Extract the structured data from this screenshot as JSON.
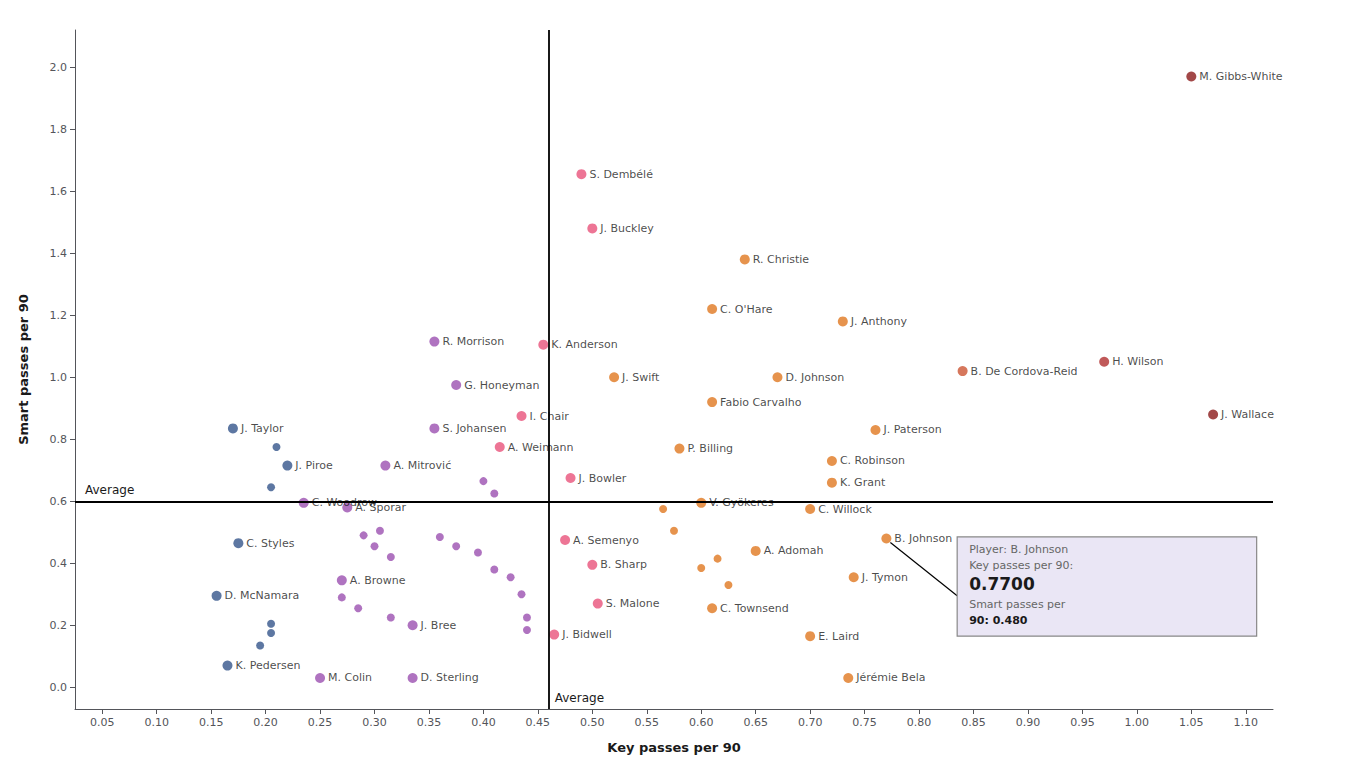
{
  "chart_data": {
    "type": "scatter",
    "xlabel": "Key passes per 90",
    "ylabel": "Smart passes per 90",
    "xlim": [
      0.025,
      1.125
    ],
    "ylim": [
      -0.07,
      2.12
    ],
    "xticks": [
      0.05,
      {
        "value": 0.1,
        "label": "0.10"
      },
      0.15,
      {
        "value": 0.2,
        "label": "0.20"
      },
      0.25,
      {
        "value": 0.3,
        "label": "0.30"
      },
      0.35,
      {
        "value": 0.4,
        "label": "0.40"
      },
      0.45,
      {
        "value": 0.5,
        "label": "0.50"
      },
      0.55,
      {
        "value": 0.6,
        "label": "0.60"
      },
      0.65,
      {
        "value": 0.7,
        "label": "0.70"
      },
      0.75,
      {
        "value": 0.8,
        "label": "0.80"
      },
      0.85,
      {
        "value": 0.9,
        "label": "0.90"
      },
      0.95,
      {
        "value": 1.0,
        "label": "1.00"
      },
      1.05,
      {
        "value": 1.1,
        "label": "1.10"
      }
    ],
    "yticks": [
      {
        "value": 0,
        "label": "0.0"
      },
      0.2,
      0.4,
      0.6,
      0.8,
      {
        "value": 1,
        "label": "1.0"
      },
      1.2,
      1.4,
      1.6,
      1.8,
      {
        "value": 2,
        "label": "2.0"
      }
    ],
    "grid": false,
    "avg_x": 0.46,
    "avg_y": 0.6,
    "avg_label": "Average",
    "annotation": {
      "x": 0.77,
      "y": 0.48,
      "lines": [
        "Player: B. Johnson",
        "Key passes per 90:",
        "0.7700",
        "Smart passes per",
        "90: 0.480"
      ]
    },
    "points": [
      {
        "label": "M. Gibbs-White",
        "x": 1.05,
        "y": 1.97,
        "color": "#8B1A1A"
      },
      {
        "label": "J. Wallace",
        "x": 1.07,
        "y": 0.88,
        "color": "#8B1A1A"
      },
      {
        "label": "H. Wilson",
        "x": 0.97,
        "y": 1.05,
        "color": "#b03030"
      },
      {
        "label": "B. De Cordova-Reid",
        "x": 0.84,
        "y": 1.02,
        "color": "#cc5533"
      },
      {
        "label": "J. Anthony",
        "x": 0.73,
        "y": 1.18,
        "color": "#e07820"
      },
      {
        "label": "R. Christie",
        "x": 0.64,
        "y": 1.38,
        "color": "#e07820"
      },
      {
        "label": "C. O'Hare",
        "x": 0.61,
        "y": 1.22,
        "color": "#e07820"
      },
      {
        "label": "D. Johnson",
        "x": 0.67,
        "y": 1.0,
        "color": "#e07820"
      },
      {
        "label": "Fabio Carvalho",
        "x": 0.61,
        "y": 0.92,
        "color": "#e07820"
      },
      {
        "label": "J. Swift",
        "x": 0.52,
        "y": 1.0,
        "color": "#e07820"
      },
      {
        "label": "J. Paterson",
        "x": 0.76,
        "y": 0.83,
        "color": "#e07820"
      },
      {
        "label": "C. Robinson",
        "x": 0.72,
        "y": 0.73,
        "color": "#e07820"
      },
      {
        "label": "K. Grant",
        "x": 0.72,
        "y": 0.66,
        "color": "#e07820"
      },
      {
        "label": "P. Billing",
        "x": 0.58,
        "y": 0.77,
        "color": "#e07820"
      },
      {
        "label": "V. Gyökeres",
        "x": 0.6,
        "y": 0.595,
        "color": "#e07820"
      },
      {
        "label": "C. Willock",
        "x": 0.7,
        "y": 0.575,
        "color": "#e07820"
      },
      {
        "label": "B. Johnson",
        "x": 0.77,
        "y": 0.48,
        "color": "#e07820"
      },
      {
        "label": "A. Adomah",
        "x": 0.65,
        "y": 0.44,
        "color": "#e07820"
      },
      {
        "label": "J. Tymon",
        "x": 0.74,
        "y": 0.355,
        "color": "#e07820"
      },
      {
        "label": "C. Townsend",
        "x": 0.61,
        "y": 0.255,
        "color": "#e07820"
      },
      {
        "label": "E. Laird",
        "x": 0.7,
        "y": 0.165,
        "color": "#e07820"
      },
      {
        "label": "Jérémie Bela",
        "x": 0.735,
        "y": 0.03,
        "color": "#e07820"
      },
      {
        "label": "S. Dembélé",
        "x": 0.49,
        "y": 1.655,
        "color": "#e8527a"
      },
      {
        "label": "J. Buckley",
        "x": 0.5,
        "y": 1.48,
        "color": "#e8527a"
      },
      {
        "label": "K. Anderson",
        "x": 0.455,
        "y": 1.105,
        "color": "#e8527a"
      },
      {
        "label": "I. Chair",
        "x": 0.435,
        "y": 0.875,
        "color": "#e8527a"
      },
      {
        "label": "A. Weimann",
        "x": 0.415,
        "y": 0.775,
        "color": "#e8527a"
      },
      {
        "label": "J. Bowler",
        "x": 0.48,
        "y": 0.675,
        "color": "#e8527a"
      },
      {
        "label": "A. Semenyo",
        "x": 0.475,
        "y": 0.475,
        "color": "#e8527a"
      },
      {
        "label": "B. Sharp",
        "x": 0.5,
        "y": 0.395,
        "color": "#e8527a"
      },
      {
        "label": "S. Malone",
        "x": 0.505,
        "y": 0.27,
        "color": "#e8527a"
      },
      {
        "label": "J. Bidwell",
        "x": 0.465,
        "y": 0.17,
        "color": "#e8527a"
      },
      {
        "label": "R. Morrison",
        "x": 0.355,
        "y": 1.115,
        "color": "#9b50b0"
      },
      {
        "label": "G. Honeyman",
        "x": 0.375,
        "y": 0.975,
        "color": "#9b50b0"
      },
      {
        "label": "S. Johansen",
        "x": 0.355,
        "y": 0.835,
        "color": "#9b50b0"
      },
      {
        "label": "A. Mitrović",
        "x": 0.31,
        "y": 0.715,
        "color": "#9b50b0"
      },
      {
        "label": "A. Šporar",
        "x": 0.275,
        "y": 0.58,
        "color": "#9b50b0"
      },
      {
        "label": "C. Woodrow",
        "x": 0.235,
        "y": 0.595,
        "color": "#9b50b0"
      },
      {
        "label": "A. Browne",
        "x": 0.27,
        "y": 0.345,
        "color": "#9b50b0"
      },
      {
        "label": "J. Bree",
        "x": 0.335,
        "y": 0.2,
        "color": "#9b50b0"
      },
      {
        "label": "M. Colin",
        "x": 0.25,
        "y": 0.03,
        "color": "#9b50b0"
      },
      {
        "label": "D. Sterling",
        "x": 0.335,
        "y": 0.03,
        "color": "#9b50b0"
      },
      {
        "label": "J. Taylor",
        "x": 0.17,
        "y": 0.835,
        "color": "#34558b"
      },
      {
        "label": "J. Piroe",
        "x": 0.22,
        "y": 0.715,
        "color": "#34558b"
      },
      {
        "label": "C. Styles",
        "x": 0.175,
        "y": 0.465,
        "color": "#34558b"
      },
      {
        "label": "D. McNamara",
        "x": 0.155,
        "y": 0.295,
        "color": "#34558b"
      },
      {
        "label": "K. Pedersen",
        "x": 0.165,
        "y": 0.07,
        "color": "#34558b"
      }
    ],
    "unlabeled_points": [
      {
        "x": 0.21,
        "y": 0.775,
        "color": "#34558b"
      },
      {
        "x": 0.205,
        "y": 0.645,
        "color": "#34558b"
      },
      {
        "x": 0.205,
        "y": 0.205,
        "color": "#34558b"
      },
      {
        "x": 0.205,
        "y": 0.175,
        "color": "#34558b"
      },
      {
        "x": 0.195,
        "y": 0.135,
        "color": "#34558b"
      },
      {
        "x": 0.29,
        "y": 0.49,
        "color": "#9b50b0"
      },
      {
        "x": 0.3,
        "y": 0.455,
        "color": "#9b50b0"
      },
      {
        "x": 0.305,
        "y": 0.505,
        "color": "#9b50b0"
      },
      {
        "x": 0.315,
        "y": 0.42,
        "color": "#9b50b0"
      },
      {
        "x": 0.27,
        "y": 0.29,
        "color": "#9b50b0"
      },
      {
        "x": 0.285,
        "y": 0.255,
        "color": "#9b50b0"
      },
      {
        "x": 0.315,
        "y": 0.225,
        "color": "#9b50b0"
      },
      {
        "x": 0.36,
        "y": 0.485,
        "color": "#9b50b0"
      },
      {
        "x": 0.375,
        "y": 0.455,
        "color": "#9b50b0"
      },
      {
        "x": 0.395,
        "y": 0.435,
        "color": "#9b50b0"
      },
      {
        "x": 0.41,
        "y": 0.38,
        "color": "#9b50b0"
      },
      {
        "x": 0.425,
        "y": 0.355,
        "color": "#9b50b0"
      },
      {
        "x": 0.435,
        "y": 0.3,
        "color": "#9b50b0"
      },
      {
        "x": 0.44,
        "y": 0.225,
        "color": "#9b50b0"
      },
      {
        "x": 0.44,
        "y": 0.185,
        "color": "#9b50b0"
      },
      {
        "x": 0.4,
        "y": 0.665,
        "color": "#9b50b0"
      },
      {
        "x": 0.41,
        "y": 0.625,
        "color": "#9b50b0"
      },
      {
        "x": 0.565,
        "y": 0.575,
        "color": "#e07820"
      },
      {
        "x": 0.575,
        "y": 0.505,
        "color": "#e07820"
      },
      {
        "x": 0.6,
        "y": 0.385,
        "color": "#e07820"
      },
      {
        "x": 0.625,
        "y": 0.33,
        "color": "#e07820"
      },
      {
        "x": 0.615,
        "y": 0.415,
        "color": "#e07820"
      }
    ]
  }
}
